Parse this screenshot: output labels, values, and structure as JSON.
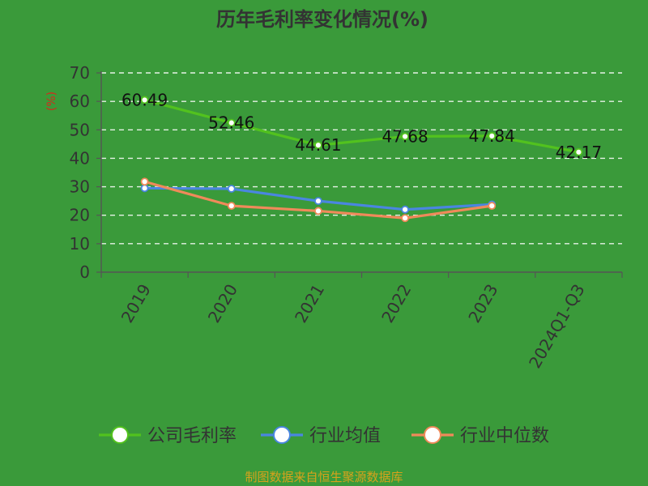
{
  "chart_data": {
    "type": "line",
    "title": "历年毛利率变化情况(%)",
    "ylabel": "(%)",
    "xlabel": "",
    "categories": [
      "2019",
      "2020",
      "2021",
      "2022",
      "2023",
      "2024Q1-Q3"
    ],
    "yticks": [
      "0",
      "10",
      "20",
      "30",
      "40",
      "50",
      "60",
      "70"
    ],
    "ylim": [
      0,
      70
    ],
    "grid": true,
    "legend_position": "bottom",
    "series": [
      {
        "name": "公司毛利率",
        "color": "#52c21e",
        "values": [
          60.49,
          52.46,
          44.61,
          47.68,
          47.84,
          42.17
        ],
        "labels": [
          "60.49",
          "52.46",
          "44.61",
          "47.68",
          "47.84",
          "42.17"
        ]
      },
      {
        "name": "行业均值",
        "color": "#4a86e0",
        "values": [
          29.5,
          29.3,
          25.0,
          22.0,
          23.8,
          null
        ]
      },
      {
        "name": "行业中位数",
        "color": "#ef8a5a",
        "values": [
          31.8,
          23.3,
          21.5,
          19.0,
          23.3,
          null
        ]
      }
    ]
  },
  "source": "制图数据来自恒生聚源数据库"
}
